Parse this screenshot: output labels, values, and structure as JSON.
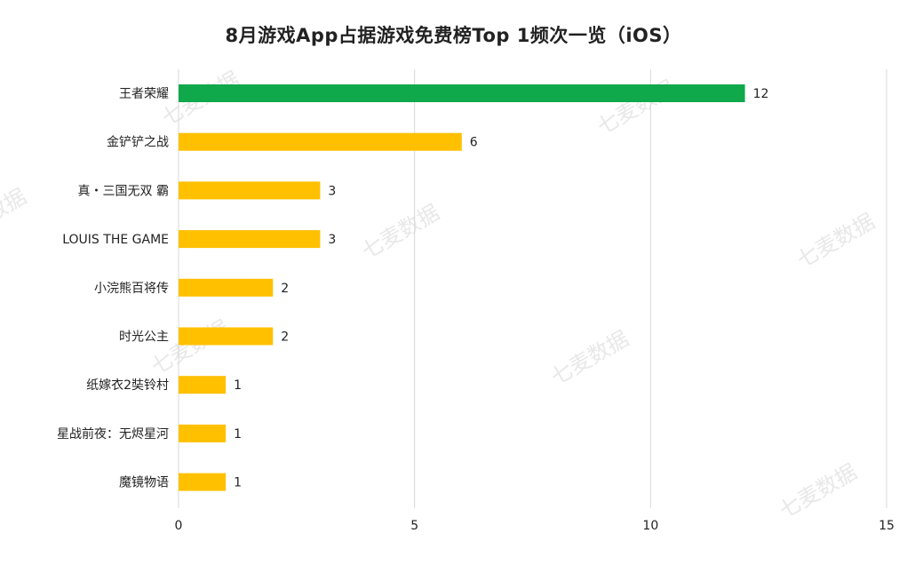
{
  "chart_data": {
    "type": "bar",
    "orientation": "horizontal",
    "title": "8月游戏App占据游戏免费榜Top 1频次一览（iOS）",
    "categories": [
      "王者荣耀",
      "金铲铲之战",
      "真・三国无双 霸",
      "LOUIS THE GAME",
      "小浣熊百将传",
      "时光公主",
      "纸嫁衣2奘铃村",
      "星战前夜：无烬星河",
      "魔镜物语"
    ],
    "values": [
      12,
      6,
      3,
      3,
      2,
      2,
      1,
      1,
      1
    ],
    "bar_colors": [
      "#0fa84b",
      "#ffc000",
      "#ffc000",
      "#ffc000",
      "#ffc000",
      "#ffc000",
      "#ffc000",
      "#ffc000",
      "#ffc000"
    ],
    "xlim": [
      0,
      15
    ],
    "xticks": [
      0,
      5,
      10,
      15
    ],
    "grid": true,
    "legend": "none"
  },
  "watermark": "七麦数据"
}
